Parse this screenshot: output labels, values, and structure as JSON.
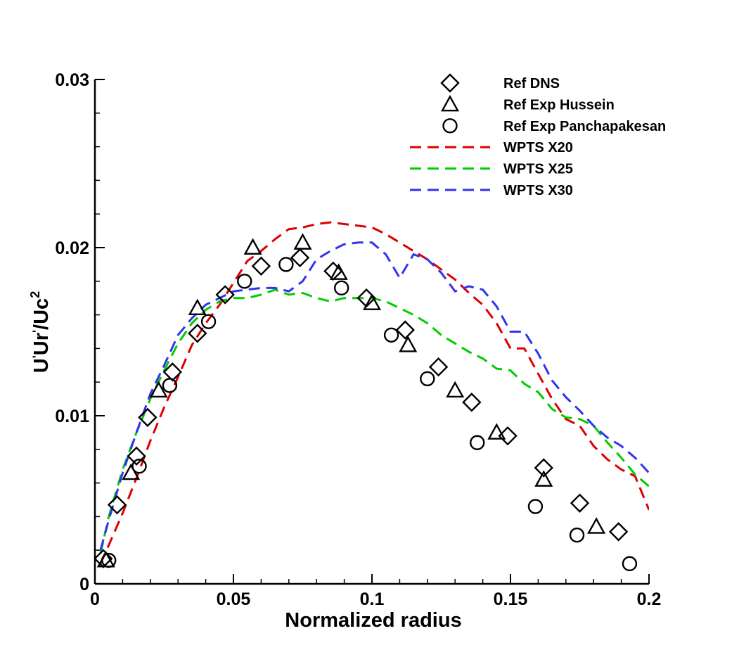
{
  "chart_data": {
    "type": "scatter",
    "title": "",
    "xlabel": "Normalized radius",
    "ylabel": "U'Ur'/Uc²",
    "ylabel_parts": {
      "base1": "U",
      "prime1": "'",
      "base2": "Ur",
      "prime2": "'",
      "base3": "/Uc",
      "exponent": "2"
    },
    "xlim": [
      0,
      0.2
    ],
    "ylim": [
      0,
      0.03
    ],
    "x_ticks": [
      "0",
      "0.05",
      "0.1",
      "0.15",
      "0.2"
    ],
    "y_ticks": [
      "0",
      "0.01",
      "0.02",
      "0.03"
    ],
    "grid": false,
    "legend_position": "top-right",
    "series": [
      {
        "name": "Ref DNS",
        "marker": "diamond",
        "style": "markers",
        "color": "#000000",
        "x": [
          0.003,
          0.008,
          0.015,
          0.019,
          0.028,
          0.037,
          0.047,
          0.06,
          0.074,
          0.086,
          0.098,
          0.112,
          0.124,
          0.136,
          0.149,
          0.162,
          0.175,
          0.189
        ],
        "y": [
          0.0015,
          0.0047,
          0.0076,
          0.0099,
          0.0126,
          0.0149,
          0.0172,
          0.0189,
          0.0194,
          0.0186,
          0.017,
          0.0151,
          0.0129,
          0.0108,
          0.0088,
          0.0069,
          0.0048,
          0.0031
        ]
      },
      {
        "name": "Ref Exp Hussein",
        "marker": "triangle",
        "style": "markers",
        "color": "#000000",
        "x": [
          0.004,
          0.013,
          0.023,
          0.037,
          0.057,
          0.075,
          0.088,
          0.1,
          0.113,
          0.13,
          0.145,
          0.162,
          0.181
        ],
        "y": [
          0.0014,
          0.0066,
          0.0115,
          0.0164,
          0.02,
          0.0203,
          0.0185,
          0.0167,
          0.0142,
          0.0115,
          0.009,
          0.0062,
          0.0034
        ]
      },
      {
        "name": "Ref Exp Panchapakesan",
        "marker": "circle",
        "style": "markers",
        "color": "#000000",
        "x": [
          0.005,
          0.016,
          0.027,
          0.041,
          0.054,
          0.069,
          0.089,
          0.107,
          0.12,
          0.138,
          0.159,
          0.174,
          0.193
        ],
        "y": [
          0.0014,
          0.007,
          0.0118,
          0.0156,
          0.018,
          0.019,
          0.0176,
          0.0148,
          0.0122,
          0.0084,
          0.0046,
          0.0029,
          0.0012
        ]
      },
      {
        "name": "WPTS X20",
        "style": "dashed-line",
        "color": "#dd0000",
        "x": [
          0.002,
          0.005,
          0.01,
          0.015,
          0.02,
          0.025,
          0.03,
          0.035,
          0.04,
          0.045,
          0.05,
          0.055,
          0.06,
          0.065,
          0.07,
          0.075,
          0.08,
          0.085,
          0.09,
          0.095,
          0.1,
          0.105,
          0.11,
          0.115,
          0.12,
          0.125,
          0.13,
          0.135,
          0.14,
          0.145,
          0.15,
          0.155,
          0.16,
          0.165,
          0.17,
          0.175,
          0.18,
          0.185,
          0.19,
          0.195,
          0.2
        ],
        "y": [
          0.0012,
          0.0023,
          0.0042,
          0.0063,
          0.0085,
          0.0105,
          0.0123,
          0.0142,
          0.0155,
          0.0166,
          0.0179,
          0.0192,
          0.0198,
          0.0205,
          0.0211,
          0.0212,
          0.0214,
          0.0215,
          0.0214,
          0.0213,
          0.0212,
          0.0208,
          0.0203,
          0.0198,
          0.0193,
          0.0187,
          0.0181,
          0.0173,
          0.0166,
          0.0155,
          0.014,
          0.014,
          0.0125,
          0.011,
          0.0098,
          0.0094,
          0.0082,
          0.0074,
          0.0068,
          0.0064,
          0.0044
        ]
      },
      {
        "name": "WPTS X25",
        "style": "dashed-line",
        "color": "#00cc00",
        "x": [
          0.002,
          0.005,
          0.01,
          0.015,
          0.02,
          0.025,
          0.03,
          0.035,
          0.04,
          0.045,
          0.05,
          0.055,
          0.06,
          0.065,
          0.07,
          0.075,
          0.08,
          0.085,
          0.09,
          0.095,
          0.1,
          0.105,
          0.11,
          0.115,
          0.12,
          0.125,
          0.13,
          0.135,
          0.14,
          0.145,
          0.15,
          0.155,
          0.16,
          0.165,
          0.17,
          0.175,
          0.18,
          0.185,
          0.19,
          0.195,
          0.2
        ],
        "y": [
          0.0018,
          0.004,
          0.0068,
          0.009,
          0.011,
          0.0127,
          0.0143,
          0.0155,
          0.0163,
          0.0168,
          0.017,
          0.017,
          0.0172,
          0.0175,
          0.0172,
          0.0173,
          0.017,
          0.0168,
          0.017,
          0.017,
          0.017,
          0.0168,
          0.0164,
          0.016,
          0.0155,
          0.0148,
          0.0143,
          0.0138,
          0.0134,
          0.0128,
          0.0127,
          0.0119,
          0.0114,
          0.0104,
          0.0099,
          0.0098,
          0.0094,
          0.0084,
          0.0075,
          0.0065,
          0.0058
        ]
      },
      {
        "name": "WPTS X30",
        "style": "dashed-line",
        "color": "#3333ee",
        "x": [
          0.002,
          0.005,
          0.01,
          0.015,
          0.02,
          0.025,
          0.03,
          0.035,
          0.04,
          0.045,
          0.05,
          0.055,
          0.06,
          0.065,
          0.07,
          0.075,
          0.08,
          0.085,
          0.09,
          0.095,
          0.1,
          0.105,
          0.11,
          0.115,
          0.12,
          0.125,
          0.13,
          0.135,
          0.14,
          0.145,
          0.15,
          0.155,
          0.16,
          0.165,
          0.17,
          0.175,
          0.18,
          0.185,
          0.19,
          0.195,
          0.2
        ],
        "y": [
          0.002,
          0.0038,
          0.0066,
          0.009,
          0.0113,
          0.013,
          0.0148,
          0.0158,
          0.0166,
          0.017,
          0.0174,
          0.0175,
          0.0176,
          0.0176,
          0.0174,
          0.018,
          0.0193,
          0.0198,
          0.0202,
          0.0203,
          0.0203,
          0.0196,
          0.0182,
          0.0196,
          0.0193,
          0.0185,
          0.0174,
          0.0177,
          0.0175,
          0.0165,
          0.015,
          0.015,
          0.0137,
          0.0121,
          0.0111,
          0.0103,
          0.0094,
          0.0087,
          0.0082,
          0.0075,
          0.0066
        ]
      }
    ]
  }
}
